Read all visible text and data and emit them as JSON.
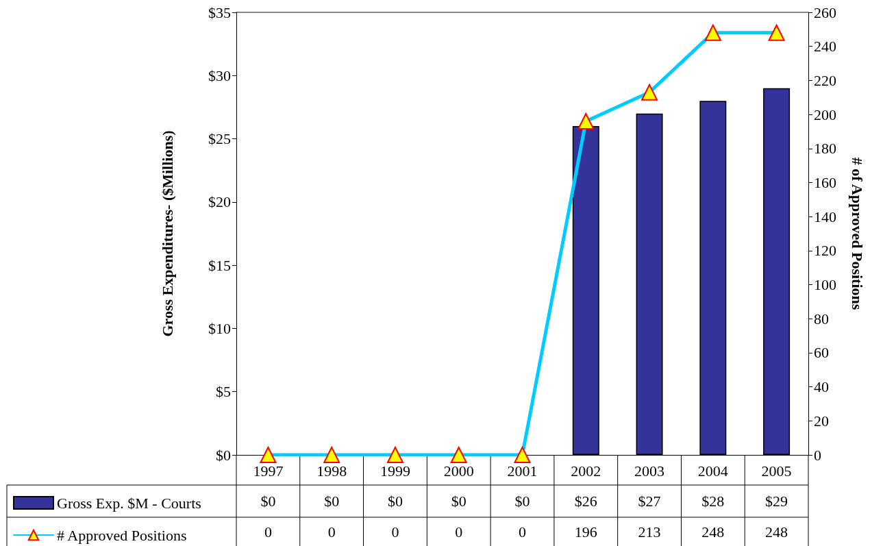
{
  "chart_data": {
    "type": "bar",
    "categories": [
      "1997",
      "1998",
      "1999",
      "2000",
      "2001",
      "2002",
      "2003",
      "2004",
      "2005"
    ],
    "ylabel": "Gross Expenditures- ($Millions)",
    "y2label": "# of Approved Positions",
    "ylim": [
      0,
      35
    ],
    "yticks": [
      {
        "value": 0,
        "label": "$0"
      },
      {
        "value": 5,
        "label": "$5"
      },
      {
        "value": 10,
        "label": "$10"
      },
      {
        "value": 15,
        "label": "$15"
      },
      {
        "value": 20,
        "label": "$20"
      },
      {
        "value": 25,
        "label": "$25"
      },
      {
        "value": 30,
        "label": "$30"
      },
      {
        "value": 35,
        "label": "$35"
      }
    ],
    "y2lim": [
      0,
      260
    ],
    "y2ticks": [
      0,
      20,
      40,
      60,
      80,
      100,
      120,
      140,
      160,
      180,
      200,
      220,
      240,
      260
    ],
    "series": [
      {
        "name": "Gross Exp. $M - Courts",
        "color": "#333399",
        "values": [
          0,
          0,
          0,
          0,
          0,
          26,
          27,
          28,
          29
        ],
        "value_labels": [
          "$0",
          "$0",
          "$0",
          "$0",
          "$0",
          "$26",
          "$27",
          "$28",
          "$29"
        ]
      },
      {
        "name": "# Approved Positions",
        "type": "line",
        "axis": "y2",
        "color": "#00ccff",
        "values": [
          0,
          0,
          0,
          0,
          0,
          196,
          213,
          248,
          248
        ],
        "value_labels": [
          "0",
          "0",
          "0",
          "0",
          "0",
          "196",
          "213",
          "248",
          "248"
        ]
      }
    ],
    "marker": "triangle",
    "legend": "bottom left",
    "grid": false
  }
}
